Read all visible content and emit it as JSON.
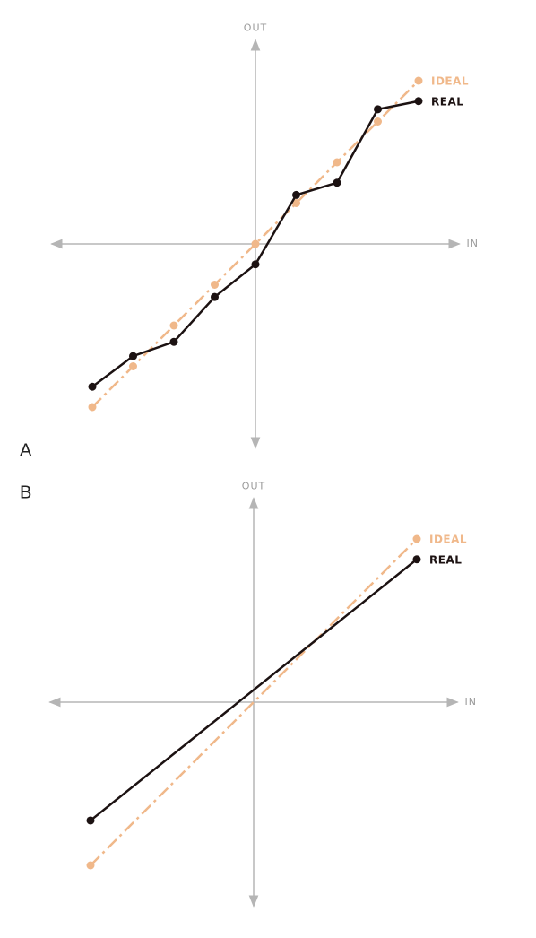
{
  "chart_data": [
    {
      "type": "line",
      "label": "A",
      "x_label": "IN",
      "y_label": "OUT",
      "x": [
        -4,
        -3,
        -2,
        -1,
        0,
        1,
        2,
        3,
        4
      ],
      "series": [
        {
          "name": "IDEAL",
          "color": "#f0b88a",
          "dashed": true,
          "values": [
            -4,
            -3,
            -2,
            -1,
            0,
            1,
            2,
            3,
            4
          ]
        },
        {
          "name": "REAL",
          "color": "#1c1212",
          "dashed": false,
          "values": [
            -3.5,
            -2.75,
            -2.4,
            -1.3,
            -0.5,
            1.2,
            1.5,
            3.3,
            3.5
          ]
        }
      ],
      "xlim": [
        -5,
        5
      ],
      "ylim": [
        -5,
        5
      ]
    },
    {
      "type": "line",
      "label": "B",
      "x_label": "IN",
      "y_label": "OUT",
      "x": [
        -4,
        4
      ],
      "series": [
        {
          "name": "IDEAL",
          "color": "#f0b88a",
          "dashed": true,
          "values": [
            -4,
            4
          ]
        },
        {
          "name": "REAL",
          "color": "#1c1212",
          "dashed": false,
          "values": [
            -2.9,
            3.5
          ]
        }
      ],
      "xlim": [
        -5,
        5
      ],
      "ylim": [
        -5,
        5
      ]
    }
  ]
}
